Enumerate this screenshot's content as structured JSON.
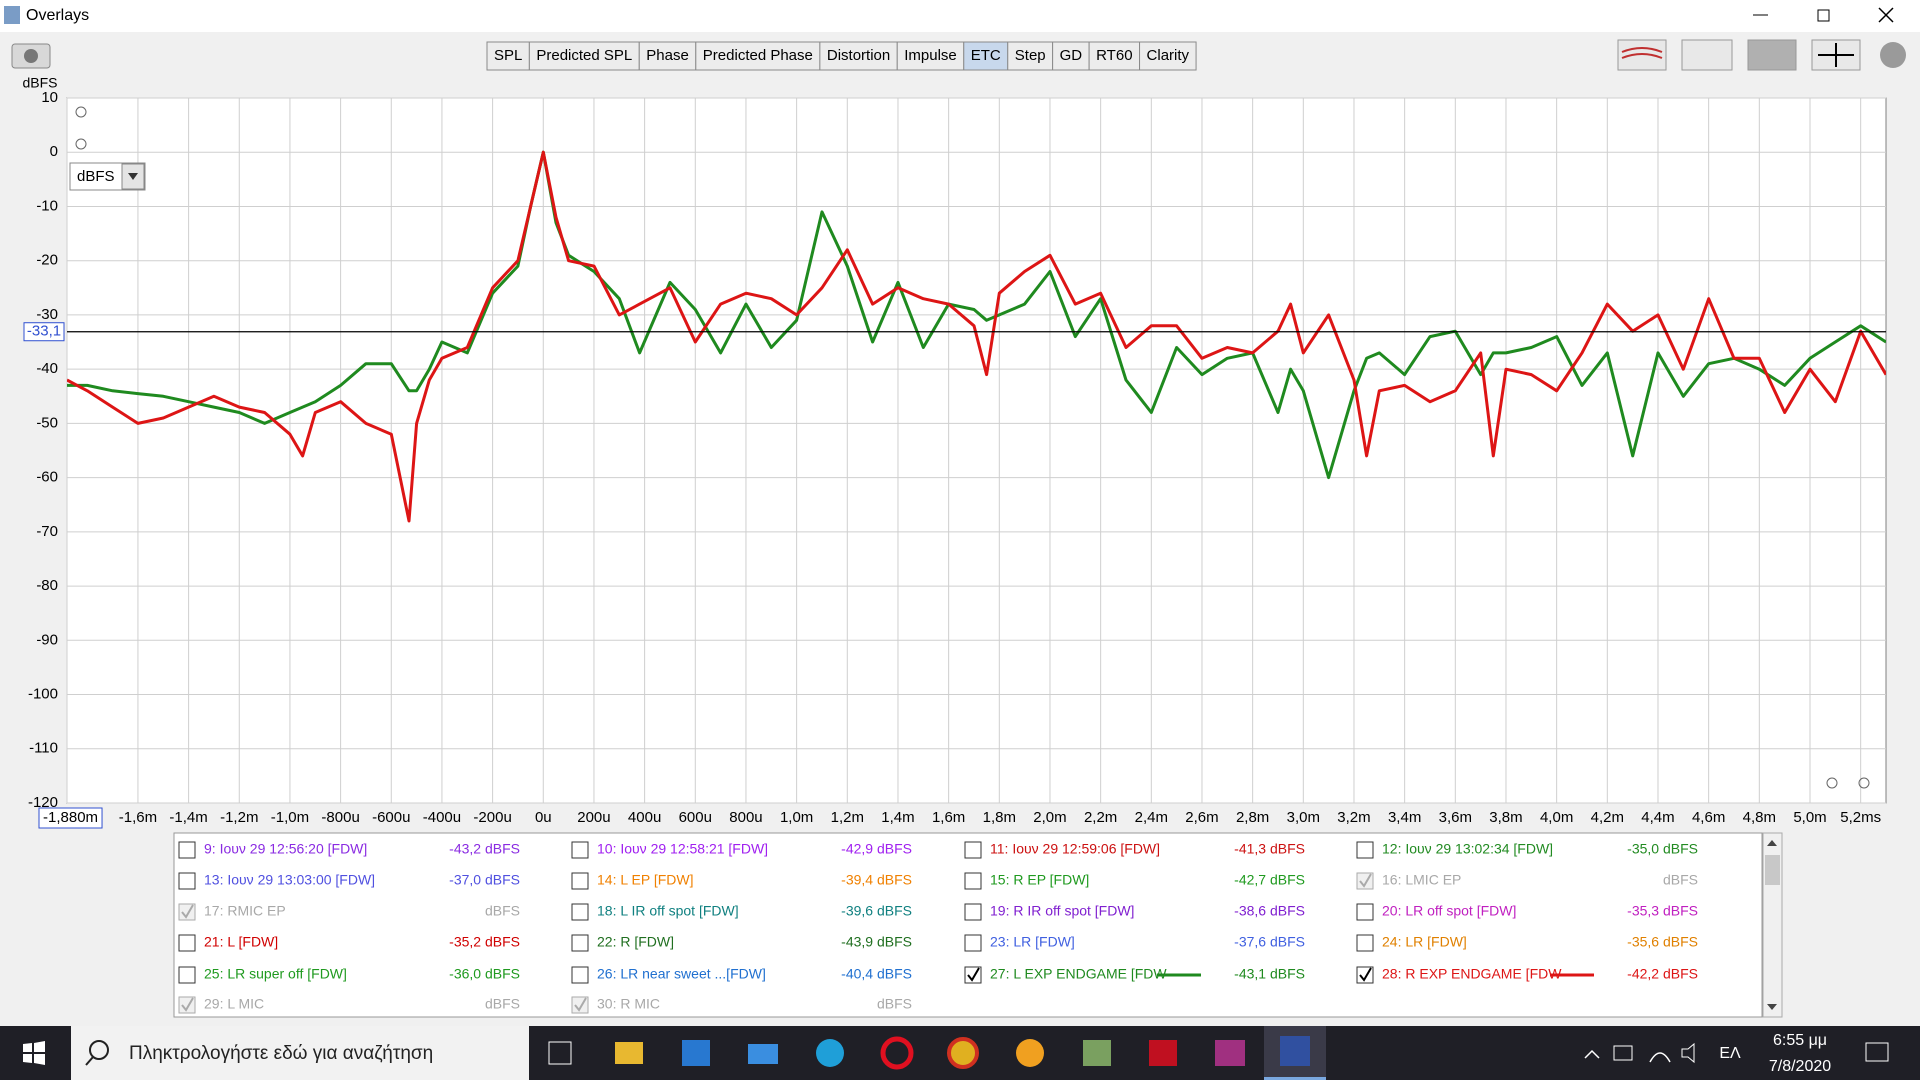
{
  "window": {
    "title": "Overlays"
  },
  "tabs": [
    "SPL",
    "Predicted SPL",
    "Phase",
    "Predicted Phase",
    "Distortion",
    "Impulse",
    "ETC",
    "Step",
    "GD",
    "RT60",
    "Clarity"
  ],
  "active_tab": 6,
  "unit_selector": "dBFS",
  "chart_data": {
    "type": "line",
    "y_label": "dBFS",
    "xlim": [
      -1.88,
      5.3
    ],
    "ylim": [
      -120,
      10
    ],
    "yticks": [
      10,
      0,
      -10,
      -20,
      -30,
      -40,
      -50,
      -60,
      -70,
      -80,
      -90,
      -100,
      -110,
      -120
    ],
    "xticks": [
      {
        "value": -1.88,
        "label": "-1,880m"
      },
      {
        "value": -1.6,
        "label": "-1,6m"
      },
      {
        "value": -1.4,
        "label": "-1,4m"
      },
      {
        "value": -1.2,
        "label": "-1,2m"
      },
      {
        "value": -1.0,
        "label": "-1,0m"
      },
      {
        "value": -0.8,
        "label": "-800u"
      },
      {
        "value": -0.6,
        "label": "-600u"
      },
      {
        "value": -0.4,
        "label": "-400u"
      },
      {
        "value": -0.2,
        "label": "-200u"
      },
      {
        "value": 0,
        "label": "0u"
      },
      {
        "value": 0.2,
        "label": "200u"
      },
      {
        "value": 0.4,
        "label": "400u"
      },
      {
        "value": 0.6,
        "label": "600u"
      },
      {
        "value": 0.8,
        "label": "800u"
      },
      {
        "value": 1.0,
        "label": "1,0m"
      },
      {
        "value": 1.2,
        "label": "1,2m"
      },
      {
        "value": 1.4,
        "label": "1,4m"
      },
      {
        "value": 1.6,
        "label": "1,6m"
      },
      {
        "value": 1.8,
        "label": "1,8m"
      },
      {
        "value": 2.0,
        "label": "2,0m"
      },
      {
        "value": 2.2,
        "label": "2,2m"
      },
      {
        "value": 2.4,
        "label": "2,4m"
      },
      {
        "value": 2.6,
        "label": "2,6m"
      },
      {
        "value": 2.8,
        "label": "2,8m"
      },
      {
        "value": 3.0,
        "label": "3,0m"
      },
      {
        "value": 3.2,
        "label": "3,2m"
      },
      {
        "value": 3.4,
        "label": "3,4m"
      },
      {
        "value": 3.6,
        "label": "3,6m"
      },
      {
        "value": 3.8,
        "label": "3,8m"
      },
      {
        "value": 4.0,
        "label": "4,0m"
      },
      {
        "value": 4.2,
        "label": "4,2m"
      },
      {
        "value": 4.4,
        "label": "4,4m"
      },
      {
        "value": 4.6,
        "label": "4,6m"
      },
      {
        "value": 4.8,
        "label": "4,8m"
      },
      {
        "value": 5.0,
        "label": "5,0m"
      },
      {
        "value": 5.2,
        "label": "5,2ms"
      }
    ],
    "grid": true,
    "cursor": {
      "value": -33.1,
      "label": "-33,1"
    },
    "x": [
      -1.88,
      -1.8,
      -1.7,
      -1.6,
      -1.5,
      -1.4,
      -1.3,
      -1.2,
      -1.1,
      -1.0,
      -0.95,
      -0.9,
      -0.8,
      -0.7,
      -0.6,
      -0.53,
      -0.5,
      -0.45,
      -0.4,
      -0.3,
      -0.2,
      -0.1,
      -0.05,
      0,
      0.05,
      0.1,
      0.2,
      0.3,
      0.38,
      0.5,
      0.6,
      0.7,
      0.8,
      0.9,
      1.0,
      1.1,
      1.2,
      1.3,
      1.4,
      1.5,
      1.6,
      1.7,
      1.75,
      1.8,
      1.9,
      2.0,
      2.1,
      2.2,
      2.3,
      2.4,
      2.5,
      2.6,
      2.7,
      2.8,
      2.9,
      2.95,
      3.0,
      3.1,
      3.2,
      3.25,
      3.3,
      3.4,
      3.5,
      3.6,
      3.7,
      3.75,
      3.8,
      3.9,
      4.0,
      4.1,
      4.2,
      4.3,
      4.4,
      4.5,
      4.6,
      4.7,
      4.8,
      4.9,
      5.0,
      5.1,
      5.2,
      5.3
    ],
    "series": [
      {
        "color": "#1f8a1f",
        "values": [
          -43,
          -43,
          -44,
          -44.5,
          -45,
          -46,
          -47,
          -48,
          -50,
          -48,
          -47,
          -46,
          -43,
          -39,
          -39,
          -44,
          -44,
          -40,
          -35,
          -37,
          -26,
          -21,
          -10,
          0,
          -13,
          -19,
          -22,
          -27,
          -37,
          -24,
          -29,
          -37,
          -28,
          -36,
          -31,
          -11,
          -21,
          -35,
          -24,
          -36,
          -28,
          -29,
          -31,
          -30,
          -28,
          -22,
          -34,
          -27,
          -42,
          -48,
          -36,
          -41,
          -38,
          -37,
          -48,
          -40,
          -44,
          -60,
          -44,
          -38,
          -37,
          -41,
          -34,
          -33,
          -41,
          -37,
          -37,
          -36,
          -34,
          -43,
          -37,
          -56,
          -37,
          -45,
          -39,
          -38,
          -40,
          -43,
          -38,
          -35,
          -32,
          -35
        ]
      },
      {
        "color": "#dd1515",
        "values": [
          -42,
          -44,
          -47,
          -50,
          -49,
          -47,
          -45,
          -47,
          -48,
          -52,
          -56,
          -48,
          -46,
          -50,
          -52,
          -68,
          -50,
          -42,
          -38,
          -36,
          -25,
          -20,
          -10,
          0,
          -12,
          -20,
          -21,
          -30,
          -28,
          -25,
          -35,
          -28,
          -26,
          -27,
          -30,
          -25,
          -18,
          -28,
          -25,
          -27,
          -28,
          -32,
          -41,
          -26,
          -22,
          -19,
          -28,
          -26,
          -36,
          -32,
          -32,
          -38,
          -36,
          -37,
          -33,
          -28,
          -37,
          -30,
          -42,
          -56,
          -44,
          -43,
          -46,
          -44,
          -37,
          -56,
          -40,
          -41,
          -44,
          -37,
          -28,
          -33,
          -30,
          -40,
          -27,
          -38,
          -38,
          -48,
          -40,
          -46,
          -33,
          -41
        ]
      }
    ]
  },
  "legend": {
    "items": [
      {
        "name": "9: Ιουν 29 12:56:20 [FDW]",
        "value": "-43,2 dBFS",
        "color": "#8a2be2",
        "checked": false,
        "enabled": true
      },
      {
        "name": "10: Ιουν 29 12:58:21 [FDW]",
        "value": "-42,9 dBFS",
        "color": "#a020f0",
        "checked": false,
        "enabled": true
      },
      {
        "name": "11: Ιουν 29 12:59:06 [FDW]",
        "value": "-41,3 dBFS",
        "color": "#cc1111",
        "checked": false,
        "enabled": true
      },
      {
        "name": "12: Ιουν 29 13:02:34 [FDW]",
        "value": "-35,0 dBFS",
        "color": "#228b22",
        "checked": false,
        "enabled": true
      },
      {
        "name": "13: Ιουν 29 13:03:00 [FDW]",
        "value": "-37,0 dBFS",
        "color": "#5050e0",
        "checked": false,
        "enabled": true
      },
      {
        "name": "14: L EP [FDW]",
        "value": "-39,4 dBFS",
        "color": "#f08000",
        "checked": false,
        "enabled": true
      },
      {
        "name": "15: R EP [FDW]",
        "value": "-42,7 dBFS",
        "color": "#1f9a1f",
        "checked": false,
        "enabled": true
      },
      {
        "name": "16: LMIC EP",
        "value": "dBFS",
        "color": "#a8a8a8",
        "checked": true,
        "enabled": false
      },
      {
        "name": "17: RMIC EP",
        "value": "dBFS",
        "color": "#a8a8a8",
        "checked": true,
        "enabled": false
      },
      {
        "name": "18: L IR off spot [FDW]",
        "value": "-39,6 dBFS",
        "color": "#108080",
        "checked": false,
        "enabled": true
      },
      {
        "name": "19: R IR off spot [FDW]",
        "value": "-38,6 dBFS",
        "color": "#8020d0",
        "checked": false,
        "enabled": true
      },
      {
        "name": "20: LR off spot [FDW]",
        "value": "-35,3 dBFS",
        "color": "#c020c0",
        "checked": false,
        "enabled": true
      },
      {
        "name": "21: L [FDW]",
        "value": "-35,2 dBFS",
        "color": "#d00000",
        "checked": false,
        "enabled": true
      },
      {
        "name": "22: R [FDW]",
        "value": "-43,9 dBFS",
        "color": "#206f20",
        "checked": false,
        "enabled": true
      },
      {
        "name": "23: LR [FDW]",
        "value": "-37,6 dBFS",
        "color": "#4060e0",
        "checked": false,
        "enabled": true
      },
      {
        "name": "24: LR [FDW]",
        "value": "-35,6 dBFS",
        "color": "#e08000",
        "checked": false,
        "enabled": true
      },
      {
        "name": "25: LR super off [FDW]",
        "value": "-36,0 dBFS",
        "color": "#1f9a1f",
        "checked": false,
        "enabled": true
      },
      {
        "name": "26: LR near sweet ...[FDW]",
        "value": "-40,4 dBFS",
        "color": "#2070d0",
        "checked": false,
        "enabled": true
      },
      {
        "name": "27: L EXP ENDGAME [FDW",
        "value": "-43,1 dBFS",
        "color": "#1f8a1f",
        "checked": true,
        "enabled": true
      },
      {
        "name": "28: R EXP  ENDGAME [FDW",
        "value": "-42,2 dBFS",
        "color": "#dd1515",
        "checked": true,
        "enabled": true
      },
      {
        "name": "29: L MIC",
        "value": "dBFS",
        "color": "#a8a8a8",
        "checked": true,
        "enabled": false
      },
      {
        "name": "30: R MIC",
        "value": "dBFS",
        "color": "#a8a8a8",
        "checked": true,
        "enabled": false
      }
    ]
  },
  "taskbar": {
    "search": "Πληκτρολογήστε εδώ για αναζήτηση",
    "language": "ΕΛ",
    "time": "6:55 μμ",
    "date": "7/8/2020"
  }
}
